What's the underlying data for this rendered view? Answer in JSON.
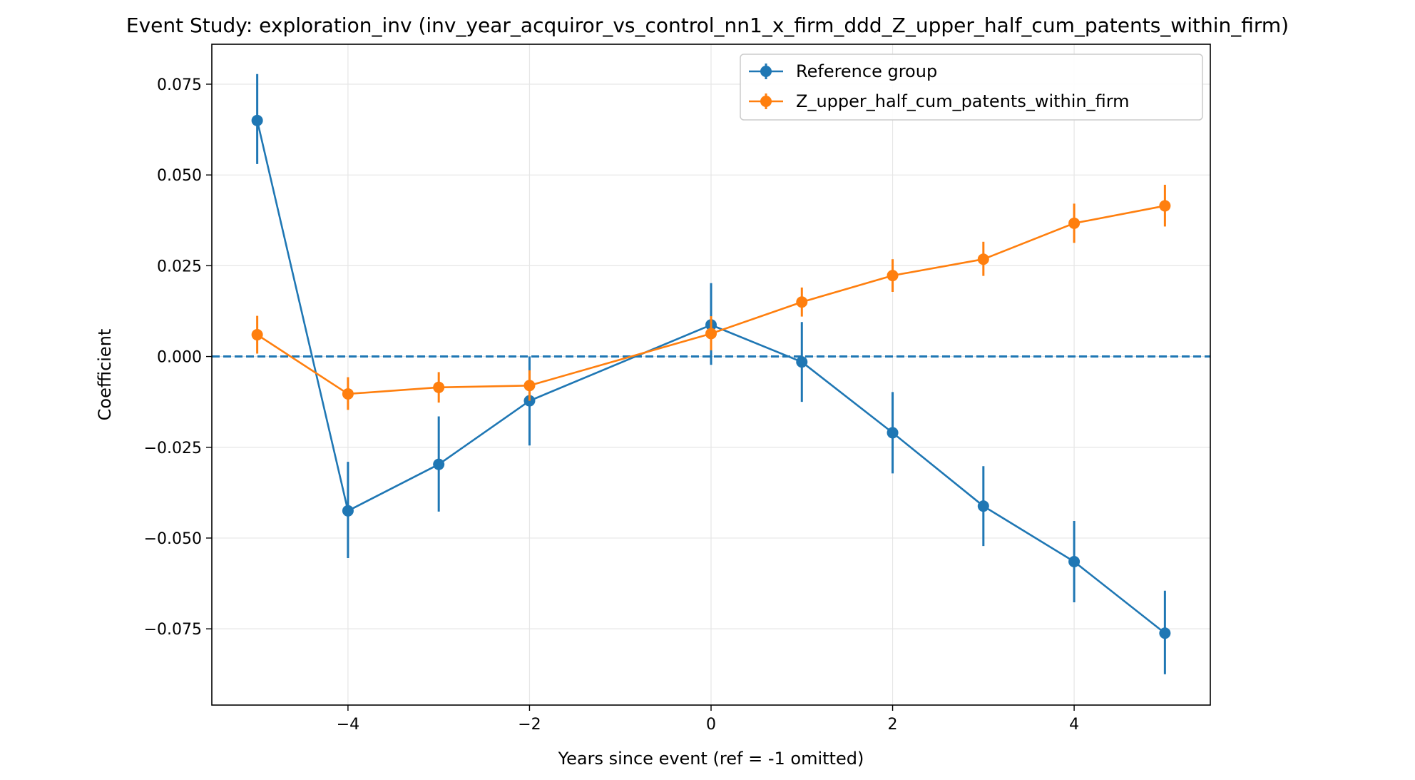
{
  "chart_data": {
    "type": "line",
    "title": "Event Study: exploration_inv (inv_year_acquiror_vs_control_nn1_x_firm_ddd_Z_upper_half_cum_patents_within_firm)",
    "xlabel": "Years since event (ref = -1 omitted)",
    "ylabel": "Coefficient",
    "xlim": [
      -5.5,
      5.5
    ],
    "ylim": [
      -0.096,
      0.086
    ],
    "xticks": [
      -4,
      -2,
      0,
      2,
      4
    ],
    "xtick_labels": [
      "−4",
      "−2",
      "0",
      "2",
      "4"
    ],
    "yticks": [
      0.075,
      0.05,
      0.025,
      0.0,
      -0.025,
      -0.05,
      -0.075
    ],
    "ytick_labels": [
      "0.075",
      "0.050",
      "0.025",
      "0.000",
      "−0.025",
      "−0.050",
      "−0.075"
    ],
    "grid": true,
    "legend_position": "top-right",
    "reference_line": {
      "y": 0,
      "style": "dashed",
      "color": "#1f77b4"
    },
    "series": [
      {
        "name": "Reference group",
        "color": "#1f77b4",
        "x": [
          -5,
          -4,
          -3,
          -2,
          0,
          1,
          2,
          3,
          4,
          5
        ],
        "y": [
          0.065,
          -0.0425,
          -0.0297,
          -0.0122,
          0.0087,
          -0.0015,
          -0.021,
          -0.0412,
          -0.0565,
          -0.0762
        ],
        "err_low": [
          0.053,
          -0.0555,
          -0.0427,
          -0.0245,
          -0.0023,
          -0.0125,
          -0.0322,
          -0.0522,
          -0.0677,
          -0.0875
        ],
        "err_high": [
          0.0778,
          -0.029,
          -0.0165,
          0.0,
          0.0202,
          0.0095,
          -0.0098,
          -0.0302,
          -0.0453,
          -0.0645
        ]
      },
      {
        "name": "Z_upper_half_cum_patents_within_firm",
        "color": "#ff7f0e",
        "x": [
          -5,
          -4,
          -3,
          -2,
          0,
          1,
          2,
          3,
          4,
          5
        ],
        "y": [
          0.006,
          -0.0103,
          -0.0085,
          -0.008,
          0.0063,
          0.015,
          0.0223,
          0.0268,
          0.0367,
          0.0415
        ],
        "err_low": [
          0.0008,
          -0.0147,
          -0.0127,
          -0.0122,
          0.0017,
          0.011,
          0.0178,
          0.0222,
          0.0313,
          0.0358
        ],
        "err_high": [
          0.0112,
          -0.0057,
          -0.0043,
          -0.0038,
          0.0111,
          0.019,
          0.0268,
          0.0316,
          0.0421,
          0.0473
        ]
      }
    ]
  }
}
